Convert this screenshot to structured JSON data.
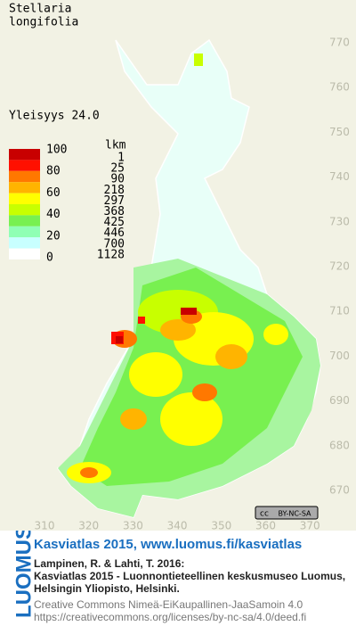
{
  "map": {
    "title_lines": [
      "Stellaria",
      "longifolia"
    ],
    "frequency": "Yleisyys  24.0",
    "legend": {
      "scale_labels": [
        "100",
        "80",
        "60",
        "40",
        "20",
        "0"
      ],
      "count_header": "lkm",
      "counts": [
        "1",
        "25",
        "90",
        "218",
        "297",
        "368",
        "425",
        "446",
        "700",
        "1128"
      ],
      "colors": [
        "#c80000",
        "#ff1000",
        "#ff7800",
        "#ffb400",
        "#ffff00",
        "#c8ff00",
        "#78f050",
        "#90ffb4",
        "#c8ffff",
        "#ffffff"
      ]
    },
    "y_labels": [
      "770",
      "760",
      "750",
      "740",
      "730",
      "720",
      "710",
      "700",
      "690",
      "680",
      "670"
    ],
    "x_labels": [
      "310",
      "320",
      "330",
      "340",
      "350",
      "360",
      "370"
    ],
    "badge": {
      "cc": "cc",
      "license": "BY-NC-SA"
    }
  },
  "footer": {
    "logo": "LUOMUS",
    "headline": "Kasviatlas 2015, www.luomus.fi/kasviatlas",
    "citation": [
      "Lampinen, R. & Lahti, T. 2016:",
      "Kasviatlas 2015 - Luonnontieteellinen keskusmuseo Luomus,",
      "Helsingin Yliopisto, Helsinki."
    ],
    "license": [
      "Creative Commons Nimeä-EiKaupallinen-JaaSamoin 4.0",
      "https://creativecommons.org/licenses/by-nc-sa/4.0/deed.fi"
    ]
  }
}
